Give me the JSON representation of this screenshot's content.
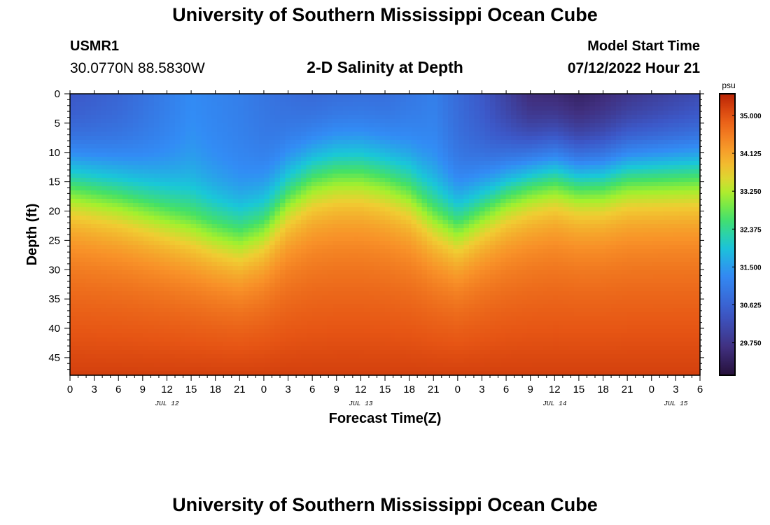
{
  "header": {
    "title": "University of Southern Mississippi Ocean Cube",
    "station_id": "USMR1",
    "coords": "30.0770N  88.5830W",
    "subtitle": "2-D Salinity at Depth",
    "model_start_label": "Model Start Time",
    "model_start_value": "07/12/2022 Hour 21"
  },
  "footer": {
    "title": "University of Southern Mississippi Ocean Cube"
  },
  "chart_data": {
    "type": "heatmap",
    "title": "2-D Salinity at Depth",
    "xlabel": "Forecast Time(Z)",
    "ylabel": "Depth (ft)",
    "x_ticks": [
      "0",
      "3",
      "6",
      "9",
      "12",
      "15",
      "18",
      "21",
      "0",
      "3",
      "6",
      "9",
      "12",
      "15",
      "18",
      "21",
      "0",
      "3",
      "6",
      "9",
      "12",
      "15",
      "18",
      "21",
      "0",
      "3",
      "6"
    ],
    "x_date_labels": [
      {
        "label": "JUL 12",
        "hours": 12
      },
      {
        "label": "JUL 13",
        "hours": 36
      },
      {
        "label": "JUL 14",
        "hours": 60
      },
      {
        "label": "JUL 15",
        "hours": 75
      }
    ],
    "x_range_hours": [
      0,
      78
    ],
    "y_ticks": [
      0,
      5,
      10,
      15,
      20,
      25,
      30,
      35,
      40,
      45
    ],
    "y_range": [
      0,
      48
    ],
    "colorbar": {
      "unit": "psu",
      "min": 29.0,
      "max": 35.5,
      "tick_values": [
        35.0,
        34.125,
        33.25,
        32.375,
        31.5,
        30.625,
        29.75
      ],
      "tick_labels": [
        "35.000",
        "34.125",
        "33.250",
        "32.375",
        "31.500",
        "30.625",
        "29.750"
      ]
    },
    "halocline_depth_ft": [
      {
        "hours": 0,
        "depth": 14
      },
      {
        "hours": 6,
        "depth": 16
      },
      {
        "hours": 12,
        "depth": 19
      },
      {
        "hours": 18,
        "depth": 22
      },
      {
        "hours": 21,
        "depth": 23
      },
      {
        "hours": 24,
        "depth": 21
      },
      {
        "hours": 27,
        "depth": 16
      },
      {
        "hours": 30,
        "depth": 13
      },
      {
        "hours": 33,
        "depth": 12
      },
      {
        "hours": 36,
        "depth": 12
      },
      {
        "hours": 39,
        "depth": 13
      },
      {
        "hours": 42,
        "depth": 15
      },
      {
        "hours": 45,
        "depth": 19
      },
      {
        "hours": 48,
        "depth": 21
      },
      {
        "hours": 51,
        "depth": 18
      },
      {
        "hours": 54,
        "depth": 15
      },
      {
        "hours": 57,
        "depth": 13
      },
      {
        "hours": 60,
        "depth": 12
      },
      {
        "hours": 63,
        "depth": 13
      },
      {
        "hours": 66,
        "depth": 13
      },
      {
        "hours": 69,
        "depth": 12
      },
      {
        "hours": 72,
        "depth": 12
      },
      {
        "hours": 75,
        "depth": 12
      },
      {
        "hours": 78,
        "depth": 12
      }
    ],
    "surface_salinity_psu": [
      {
        "hours": 0,
        "value": 30.3
      },
      {
        "hours": 6,
        "value": 30.6
      },
      {
        "hours": 15,
        "value": 31.3
      },
      {
        "hours": 21,
        "value": 31.1
      },
      {
        "hours": 30,
        "value": 30.6
      },
      {
        "hours": 39,
        "value": 30.7
      },
      {
        "hours": 45,
        "value": 31.1
      },
      {
        "hours": 51,
        "value": 30.4
      },
      {
        "hours": 57,
        "value": 29.4
      },
      {
        "hours": 63,
        "value": 29.2
      },
      {
        "hours": 70,
        "value": 29.6
      },
      {
        "hours": 78,
        "value": 30.0
      }
    ],
    "bottom_salinity_psu": 35.2
  }
}
